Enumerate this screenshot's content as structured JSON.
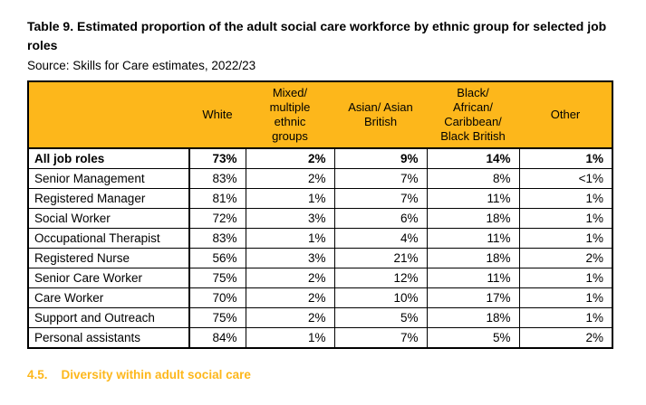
{
  "page": {
    "title": "Table 9. Estimated proportion of the adult social care workforce by ethnic group for selected job roles",
    "source": "Source: Skills for Care estimates, 2022/23",
    "section_heading": {
      "number": "4.5.",
      "text": "Diversity within adult social care"
    }
  },
  "colors": {
    "table_header_bg": "#FDB71B",
    "section_heading_text": "#FDB71B",
    "table_border": "#000000",
    "body_text": "#000000",
    "page_bg": "#FFFFFF"
  },
  "table": {
    "columns": [
      "",
      "White",
      "Mixed/\nmultiple\nethnic\ngroups",
      "Asian/ Asian\nBritish",
      "Black/\nAfrican/\nCaribbean/\nBlack British",
      "Other"
    ],
    "rows": [
      {
        "label": "All job roles",
        "values": [
          "73%",
          "2%",
          "9%",
          "14%",
          "1%"
        ]
      },
      {
        "label": "Senior Management",
        "values": [
          "83%",
          "2%",
          "7%",
          "8%",
          "<1%"
        ]
      },
      {
        "label": "Registered Manager",
        "values": [
          "81%",
          "1%",
          "7%",
          "11%",
          "1%"
        ]
      },
      {
        "label": "Social Worker",
        "values": [
          "72%",
          "3%",
          "6%",
          "18%",
          "1%"
        ]
      },
      {
        "label": "Occupational Therapist",
        "values": [
          "83%",
          "1%",
          "4%",
          "11%",
          "1%"
        ]
      },
      {
        "label": "Registered Nurse",
        "values": [
          "56%",
          "3%",
          "21%",
          "18%",
          "2%"
        ]
      },
      {
        "label": "Senior Care Worker",
        "values": [
          "75%",
          "2%",
          "12%",
          "11%",
          "1%"
        ]
      },
      {
        "label": "Care Worker",
        "values": [
          "70%",
          "2%",
          "10%",
          "17%",
          "1%"
        ]
      },
      {
        "label": "Support and Outreach",
        "values": [
          "75%",
          "2%",
          "5%",
          "18%",
          "1%"
        ]
      },
      {
        "label": "Personal assistants",
        "values": [
          "84%",
          "1%",
          "7%",
          "5%",
          "2%"
        ]
      }
    ]
  }
}
